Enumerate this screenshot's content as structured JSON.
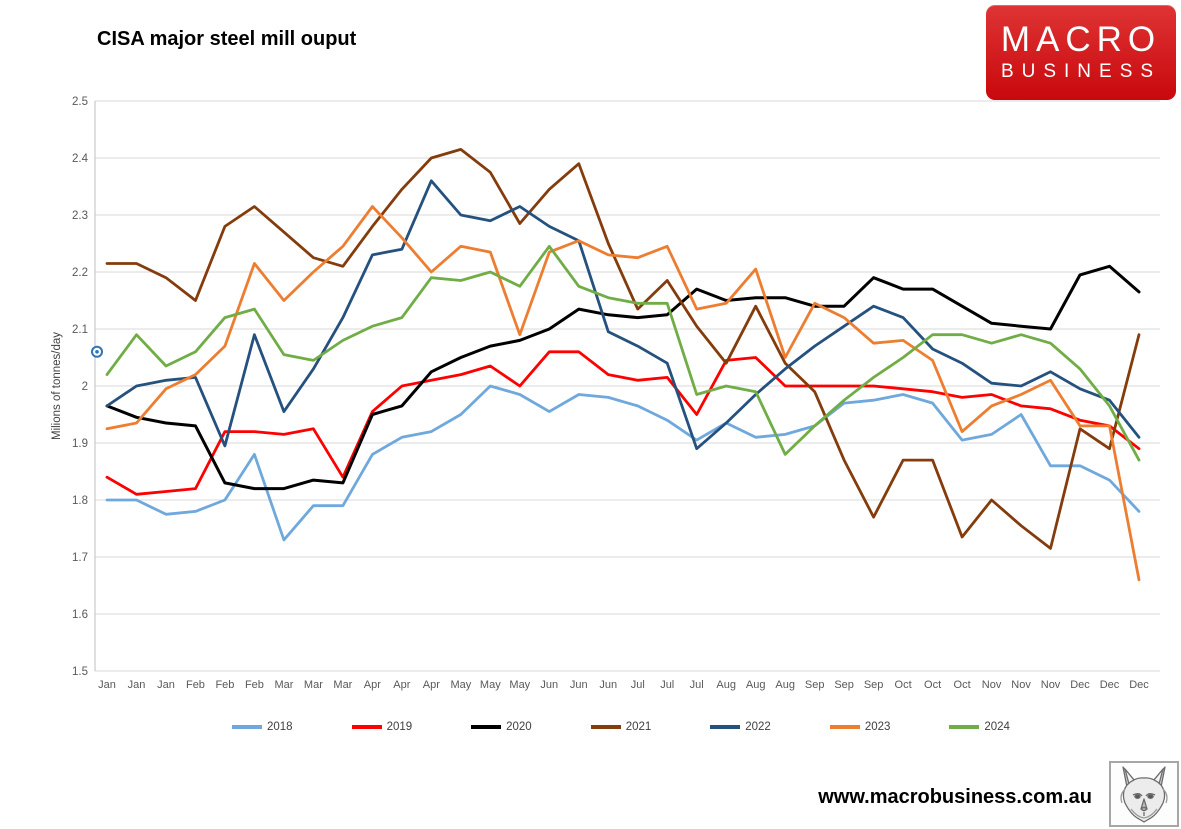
{
  "title": "CISA major steel mill ouput",
  "logo": {
    "line1": "MACRO",
    "line2": "BUSINESS",
    "bg_color": "#d01217",
    "text_color": "#ffffff"
  },
  "footer": {
    "url": "www.macrobusiness.com.au",
    "wolf_logo": "wolf-sketch-icon"
  },
  "stray_marker": {
    "description": "small blue double-circle marker left of plot",
    "value": 2.06,
    "color": "#2e75b6"
  },
  "chart_data": {
    "type": "line",
    "title": "CISA major steel mill ouput",
    "xlabel": "",
    "ylabel": "Milions of tonnes/day",
    "ylim": [
      1.5,
      2.5
    ],
    "ytick_labels": [
      "2.5",
      "2.4",
      "2.3",
      "2.2",
      "2.1",
      "2",
      "1.9",
      "1.8",
      "1.7",
      "1.6",
      "1.5"
    ],
    "grid": true,
    "gridline_color": "#d9d9d9",
    "axis_color": "#bfbfbf",
    "tick_text_color": "#595959",
    "legend_position": "bottom",
    "x_labels": [
      "Jan",
      "Jan",
      "Jan",
      "Feb",
      "Feb",
      "Feb",
      "Mar",
      "Mar",
      "Mar",
      "Apr",
      "Apr",
      "Apr",
      "May",
      "May",
      "May",
      "Jun",
      "Jun",
      "Jun",
      "Jul",
      "Jul",
      "Jul",
      "Aug",
      "Aug",
      "Aug",
      "Sep",
      "Sep",
      "Sep",
      "Oct",
      "Oct",
      "Oct",
      "Nov",
      "Nov",
      "Nov",
      "Dec",
      "Dec",
      "Dec"
    ],
    "series": [
      {
        "name": "2018",
        "color": "#6fa8dc",
        "values": [
          1.8,
          1.8,
          1.775,
          1.78,
          1.8,
          1.88,
          1.73,
          1.79,
          1.79,
          1.88,
          1.91,
          1.92,
          1.95,
          2.0,
          1.985,
          1.955,
          1.985,
          1.98,
          1.965,
          1.94,
          1.905,
          1.935,
          1.91,
          1.915,
          1.93,
          1.97,
          1.975,
          1.985,
          1.97,
          1.905,
          1.915,
          1.95,
          1.86,
          1.86,
          1.835,
          1.78
        ]
      },
      {
        "name": "2019",
        "color": "#fe0000",
        "values": [
          1.84,
          1.81,
          1.815,
          1.82,
          1.92,
          1.92,
          1.915,
          1.925,
          1.84,
          1.955,
          2.0,
          2.01,
          2.02,
          2.035,
          2.0,
          2.06,
          2.06,
          2.02,
          2.01,
          2.015,
          1.95,
          2.045,
          2.05,
          2.0,
          2.0,
          2.0,
          2.0,
          1.995,
          1.99,
          1.98,
          1.985,
          1.965,
          1.96,
          1.94,
          1.93,
          1.89
        ]
      },
      {
        "name": "2020",
        "color": "#000000",
        "values": [
          1.965,
          1.945,
          1.935,
          1.93,
          1.83,
          1.82,
          1.82,
          1.835,
          1.83,
          1.95,
          1.965,
          2.025,
          2.05,
          2.07,
          2.08,
          2.1,
          2.135,
          2.125,
          2.12,
          2.125,
          2.17,
          2.15,
          2.155,
          2.155,
          2.14,
          2.14,
          2.19,
          2.17,
          2.17,
          2.14,
          2.11,
          2.105,
          2.1,
          2.195,
          2.21,
          2.165
        ]
      },
      {
        "name": "2021",
        "color": "#843c0c",
        "values": [
          2.215,
          2.215,
          2.19,
          2.15,
          2.28,
          2.315,
          2.27,
          2.225,
          2.21,
          2.28,
          2.345,
          2.4,
          2.415,
          2.375,
          2.285,
          2.345,
          2.39,
          2.25,
          2.135,
          2.185,
          2.105,
          2.04,
          2.14,
          2.04,
          1.99,
          1.87,
          1.77,
          1.87,
          1.87,
          1.735,
          1.8,
          1.755,
          1.715,
          1.925,
          1.89,
          2.09
        ]
      },
      {
        "name": "2022",
        "color": "#25517f",
        "values": [
          1.965,
          2.0,
          2.01,
          2.015,
          1.895,
          2.09,
          1.955,
          2.03,
          2.12,
          2.23,
          2.24,
          2.36,
          2.3,
          2.29,
          2.315,
          2.28,
          2.255,
          2.095,
          2.07,
          2.04,
          1.89,
          1.935,
          1.985,
          2.03,
          2.07,
          2.105,
          2.14,
          2.12,
          2.065,
          2.04,
          2.005,
          2.0,
          2.025,
          1.995,
          1.975,
          1.91
        ]
      },
      {
        "name": "2023",
        "color": "#ed7d31",
        "values": [
          1.925,
          1.935,
          1.995,
          2.02,
          2.07,
          2.215,
          2.15,
          2.2,
          2.245,
          2.315,
          2.26,
          2.2,
          2.245,
          2.235,
          2.09,
          2.235,
          2.255,
          2.23,
          2.225,
          2.245,
          2.135,
          2.145,
          2.205,
          2.05,
          2.145,
          2.12,
          2.075,
          2.08,
          2.045,
          1.92,
          1.965,
          1.985,
          2.01,
          1.93,
          1.93,
          1.66
        ]
      },
      {
        "name": "2024",
        "color": "#70ad47",
        "values": [
          2.02,
          2.09,
          2.035,
          2.06,
          2.12,
          2.135,
          2.055,
          2.045,
          2.08,
          2.105,
          2.12,
          2.19,
          2.185,
          2.2,
          2.175,
          2.245,
          2.175,
          2.155,
          2.145,
          2.145,
          1.985,
          2.0,
          1.99,
          1.88,
          1.93,
          1.975,
          2.015,
          2.05,
          2.09,
          2.09,
          2.075,
          2.09,
          2.075,
          2.03,
          1.965,
          1.87
        ]
      }
    ]
  }
}
